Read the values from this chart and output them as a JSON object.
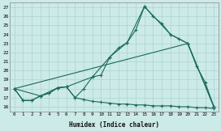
{
  "xlabel": "Humidex (Indice chaleur)",
  "ylabel": "",
  "bg_color": "#cceae8",
  "grid_color": "#aad4d0",
  "line_color": "#1a6b5a",
  "xlim": [
    -0.5,
    23.5
  ],
  "ylim": [
    15.5,
    27.5
  ],
  "xticks": [
    0,
    1,
    2,
    3,
    4,
    5,
    6,
    7,
    8,
    9,
    10,
    11,
    12,
    13,
    14,
    15,
    16,
    17,
    18,
    19,
    20,
    21,
    22,
    23
  ],
  "yticks": [
    16,
    17,
    18,
    19,
    20,
    21,
    22,
    23,
    24,
    25,
    26,
    27
  ],
  "line1_x": [
    0,
    1,
    2,
    3,
    4,
    5,
    6,
    7,
    8,
    9,
    10,
    11,
    12,
    13,
    14,
    15,
    16,
    17,
    18,
    19,
    20,
    21,
    22,
    23
  ],
  "line1_y": [
    18.0,
    16.7,
    16.7,
    17.2,
    17.5,
    18.1,
    18.2,
    17.0,
    18.0,
    19.3,
    19.5,
    21.5,
    22.5,
    23.1,
    24.5,
    27.1,
    26.0,
    25.2,
    24.0,
    23.5,
    23.0,
    20.5,
    18.7,
    16.0
  ],
  "line2_x": [
    0,
    3,
    5,
    6,
    9,
    11,
    13,
    15,
    18,
    20,
    23
  ],
  "line2_y": [
    18.0,
    17.2,
    18.1,
    18.2,
    19.3,
    21.5,
    23.1,
    27.1,
    24.0,
    23.0,
    16.0
  ],
  "line3_x": [
    0,
    20,
    23
  ],
  "line3_y": [
    18.0,
    23.0,
    16.0
  ],
  "line4_x": [
    0,
    1,
    2,
    3,
    4,
    5,
    6,
    7,
    8,
    9,
    10,
    11,
    12,
    13,
    14,
    15,
    16,
    17,
    18,
    19,
    20,
    21,
    22,
    23
  ],
  "line4_y": [
    18.0,
    16.7,
    16.7,
    17.2,
    17.5,
    18.1,
    18.2,
    17.0,
    16.8,
    16.6,
    16.5,
    16.4,
    16.3,
    16.3,
    16.2,
    16.2,
    16.1,
    16.1,
    16.1,
    16.0,
    16.0,
    15.9,
    15.9,
    15.8
  ]
}
